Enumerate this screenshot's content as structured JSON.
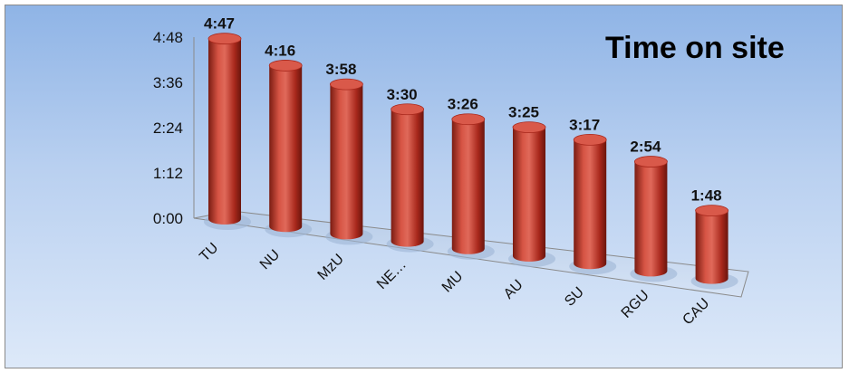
{
  "chart_data": {
    "type": "bar",
    "title": "Time on site",
    "categories": [
      "TU",
      "NU",
      "MzU",
      "NE…",
      "MU",
      "AU",
      "SU",
      "RGU",
      "CAU"
    ],
    "values": [
      "4:47",
      "4:16",
      "3:58",
      "3:30",
      "3:26",
      "3:25",
      "3:17",
      "2:54",
      "1:48"
    ],
    "values_seconds": [
      287,
      256,
      238,
      210,
      206,
      205,
      197,
      174,
      108
    ],
    "yticks": [
      "0:00",
      "1:12",
      "2:24",
      "3:36",
      "4:48"
    ],
    "ylim_seconds": [
      0,
      288
    ],
    "bar_shape": "cylinder",
    "bar_color": "#c0392b",
    "gridlines": false,
    "legend": "none"
  }
}
